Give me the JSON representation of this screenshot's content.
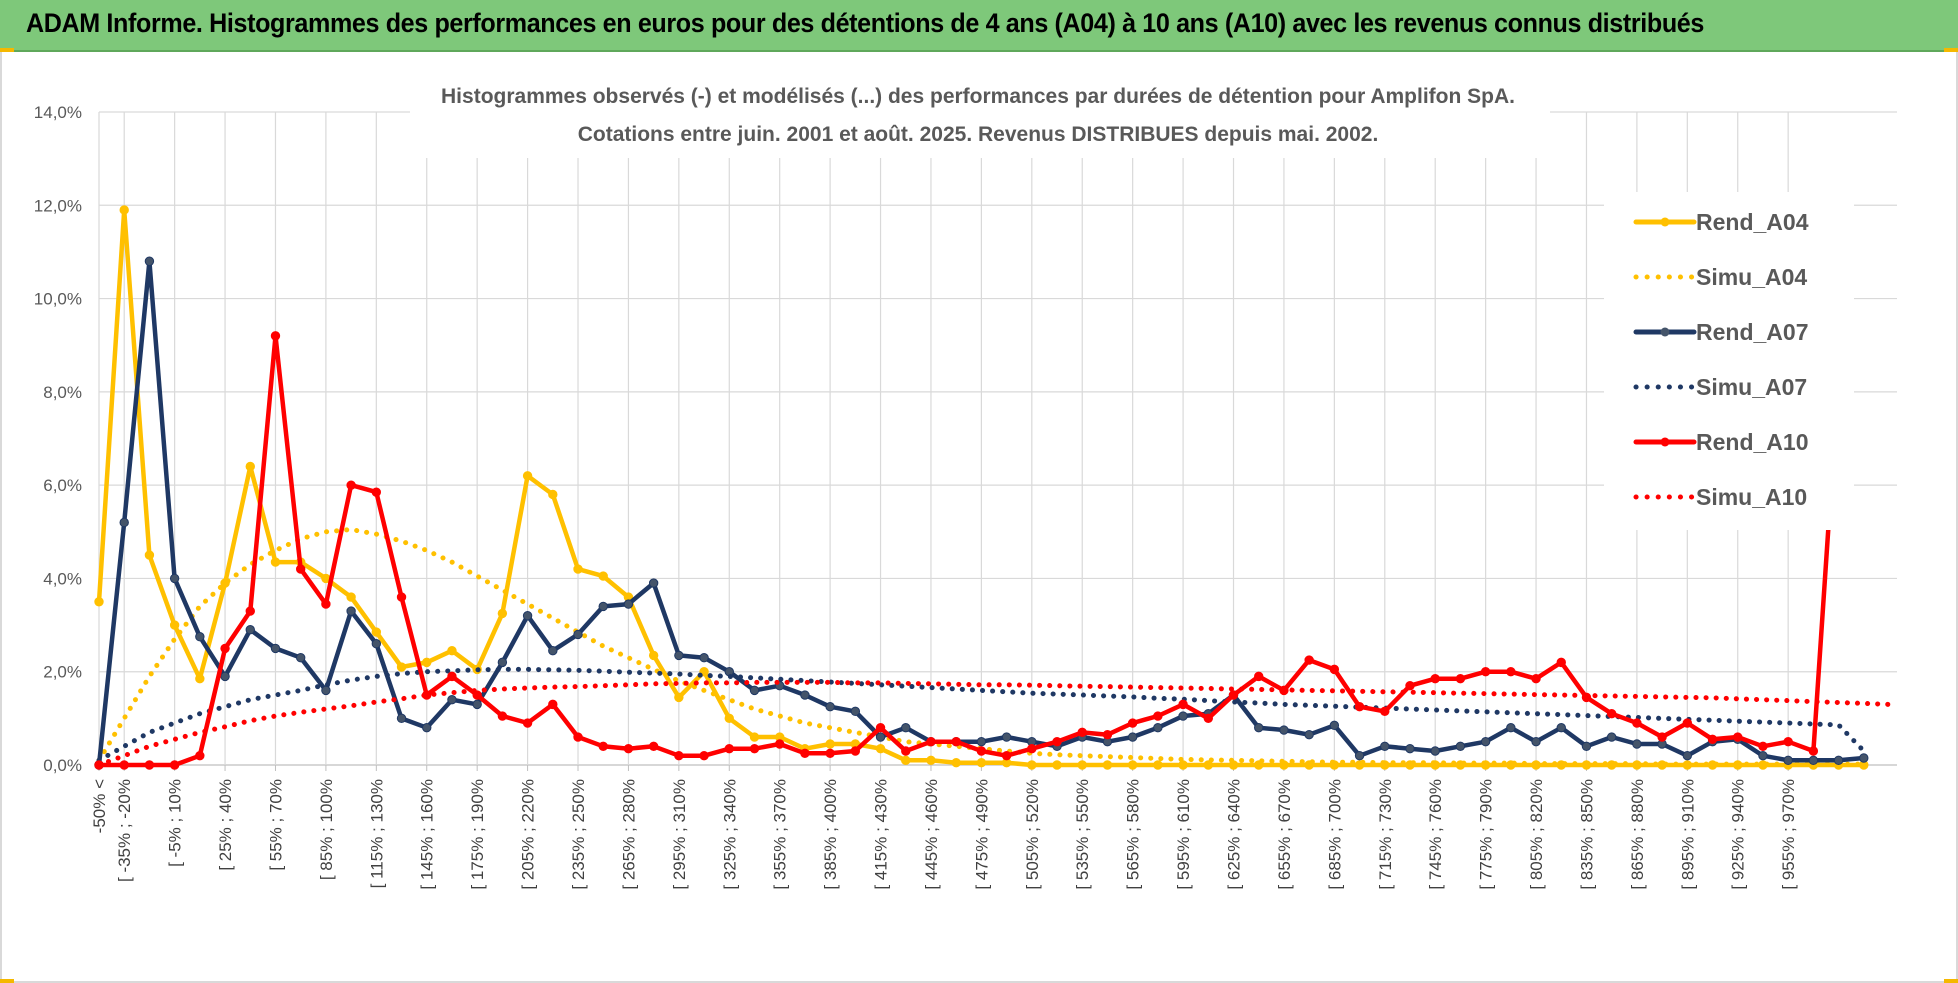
{
  "header": {
    "title": "ADAM Informe. Histogrammes des performances en euros pour des détentions de 4 ans (A04) à 10 ans (A10) avec les revenus connus distribués"
  },
  "colors": {
    "banner": "#7ec87a",
    "A04": "#ffc000",
    "A07": "#1f3864",
    "A10": "#ff0000",
    "grid": "#d9d9d9",
    "text": "#595959"
  },
  "chart_data": {
    "type": "line",
    "title": "Histogrammes observés (-) et modélisés (...) des performances par durées de détention pour Amplifon SpA.",
    "subtitle": "Cotations entre juin. 2001 et août. 2025. Revenus DISTRIBUES depuis mai. 2002.",
    "xlabel": "",
    "ylabel": "",
    "ylim": [
      0,
      14
    ],
    "yticks": [
      "0,0%",
      "2,0%",
      "4,0%",
      "6,0%",
      "8,0%",
      "10,0%",
      "12,0%",
      "14,0%"
    ],
    "grid": true,
    "legend_position": "right",
    "x_tick_labels": [
      "-50% <",
      "[ -35% ; -20%",
      "[ -5% ; 10%",
      "[ 25% ; 40%",
      "[ 55% ; 70%",
      "[ 85% ; 100%",
      "[ 115% ; 130%",
      "[ 145% ; 160%",
      "[ 175% ; 190%",
      "[ 205% ; 220%",
      "[ 235% ; 250%",
      "[ 265% ; 280%",
      "[ 295% ; 310%",
      "[ 325% ; 340%",
      "[ 355% ; 370%",
      "[ 385% ; 400%",
      "[ 415% ; 430%",
      "[ 445% ; 460%",
      "[ 475% ; 490%",
      "[ 505% ; 520%",
      "[ 535% ; 550%",
      "[ 565% ; 580%",
      "[ 595% ; 610%",
      "[ 625% ; 640%",
      "[ 655% ; 670%",
      "[ 685% ; 700%",
      "[ 715% ; 730%",
      "[ 745% ; 760%",
      "[ 775% ; 790%",
      "[ 805% ; 820%",
      "[ 835% ; 850%",
      "[ 865% ; 880%",
      "[ 895% ; 910%",
      "[ 925% ; 940%",
      "[ 955% ; 970%"
    ],
    "series": [
      {
        "name": "Rend_A04",
        "style": "solid",
        "color": "#ffc000",
        "values": [
          3.5,
          11.9,
          4.5,
          3.0,
          1.85,
          3.9,
          6.4,
          4.35,
          4.35,
          4.0,
          3.6,
          2.85,
          2.1,
          2.2,
          2.45,
          2.05,
          3.25,
          6.2,
          5.8,
          4.2,
          4.05,
          3.6,
          2.35,
          1.45,
          2.0,
          1.0,
          0.6,
          0.6,
          0.35,
          0.45,
          0.45,
          0.35,
          0.1,
          0.1,
          0.05,
          0.05,
          0.05,
          0.0,
          0.0,
          0.0,
          0.0,
          0.0,
          0.0,
          0.0,
          0.0,
          0.0,
          0.0,
          0.0,
          0.0,
          0.0,
          0.0,
          0.0,
          0.0,
          0.0,
          0.0,
          0.0,
          0.0,
          0.0,
          0.0,
          0.0,
          0.0,
          0.0,
          0.0,
          0.0,
          0.0,
          0.0,
          0.0,
          0.0,
          0.0,
          0.0,
          0.0
        ]
      },
      {
        "name": "Simu_A04",
        "style": "dotted",
        "color": "#ffc000",
        "values": [
          0.1,
          1.0,
          1.9,
          2.7,
          3.4,
          3.9,
          4.3,
          4.6,
          4.85,
          5.0,
          5.05,
          4.95,
          4.8,
          4.6,
          4.35,
          4.05,
          3.75,
          3.45,
          3.15,
          2.85,
          2.55,
          2.3,
          2.05,
          1.8,
          1.6,
          1.4,
          1.2,
          1.05,
          0.9,
          0.8,
          0.7,
          0.6,
          0.5,
          0.45,
          0.4,
          0.35,
          0.3,
          0.25,
          0.22,
          0.2,
          0.18,
          0.16,
          0.14,
          0.12,
          0.11,
          0.1,
          0.09,
          0.08,
          0.07,
          0.06,
          0.06,
          0.05,
          0.05,
          0.05,
          0.04,
          0.04,
          0.04,
          0.03,
          0.03,
          0.03,
          0.03,
          0.03,
          0.02,
          0.02,
          0.02,
          0.02,
          0.02,
          0.02,
          0.02,
          0.02,
          0.02
        ]
      },
      {
        "name": "Rend_A07",
        "style": "solid",
        "color": "#1f3864",
        "values": [
          0.0,
          5.2,
          10.8,
          4.0,
          2.75,
          1.9,
          2.9,
          2.5,
          2.3,
          1.6,
          3.3,
          2.6,
          1.0,
          0.8,
          1.4,
          1.3,
          2.2,
          3.2,
          2.45,
          2.8,
          3.4,
          3.45,
          3.9,
          2.35,
          2.3,
          2.0,
          1.6,
          1.7,
          1.5,
          1.25,
          1.15,
          0.6,
          0.8,
          0.5,
          0.5,
          0.5,
          0.6,
          0.5,
          0.4,
          0.6,
          0.5,
          0.6,
          0.8,
          1.05,
          1.1,
          1.5,
          0.8,
          0.75,
          0.65,
          0.85,
          0.2,
          0.4,
          0.35,
          0.3,
          0.4,
          0.5,
          0.8,
          0.5,
          0.8,
          0.4,
          0.6,
          0.45,
          0.45,
          0.2,
          0.5,
          0.55,
          0.2,
          0.1,
          0.1,
          0.1,
          0.15
        ]
      },
      {
        "name": "Simu_A07",
        "style": "dotted",
        "color": "#1f3864",
        "values": [
          0.1,
          0.4,
          0.7,
          0.9,
          1.1,
          1.25,
          1.4,
          1.5,
          1.6,
          1.72,
          1.82,
          1.9,
          1.96,
          2.0,
          2.02,
          2.04,
          2.05,
          2.05,
          2.04,
          2.03,
          2.01,
          1.99,
          1.97,
          1.95,
          1.92,
          1.9,
          1.87,
          1.84,
          1.81,
          1.78,
          1.75,
          1.72,
          1.69,
          1.66,
          1.63,
          1.6,
          1.57,
          1.54,
          1.52,
          1.5,
          1.48,
          1.46,
          1.43,
          1.41,
          1.38,
          1.35,
          1.33,
          1.3,
          1.28,
          1.26,
          1.24,
          1.22,
          1.2,
          1.18,
          1.16,
          1.14,
          1.12,
          1.1,
          1.08,
          1.06,
          1.04,
          1.02,
          1.0,
          0.98,
          0.96,
          0.94,
          0.92,
          0.9,
          0.88,
          0.86,
          0.3
        ]
      },
      {
        "name": "Rend_A10",
        "style": "solid",
        "color": "#ff0000",
        "values": [
          0.0,
          0.0,
          0.0,
          0.0,
          0.2,
          2.5,
          3.3,
          9.2,
          4.2,
          3.45,
          6.0,
          5.85,
          3.6,
          1.5,
          1.9,
          1.5,
          1.05,
          0.9,
          1.3,
          0.6,
          0.4,
          0.35,
          0.4,
          0.2,
          0.2,
          0.35,
          0.35,
          0.45,
          0.25,
          0.25,
          0.3,
          0.8,
          0.3,
          0.5,
          0.5,
          0.3,
          0.2,
          0.35,
          0.5,
          0.7,
          0.65,
          0.9,
          1.05,
          1.3,
          1.0,
          1.5,
          1.9,
          1.6,
          2.25,
          2.05,
          1.25,
          1.15,
          1.7,
          1.85,
          1.85,
          2.0,
          2.0,
          1.85,
          2.2,
          1.45,
          1.1,
          0.9,
          0.6,
          0.9,
          0.55,
          0.6,
          0.4,
          0.5,
          0.3,
          8.35
        ]
      },
      {
        "name": "Simu_A10",
        "style": "dotted",
        "color": "#ff0000",
        "values": [
          0.0,
          0.2,
          0.4,
          0.55,
          0.7,
          0.82,
          0.95,
          1.05,
          1.13,
          1.2,
          1.27,
          1.35,
          1.42,
          1.5,
          1.55,
          1.6,
          1.63,
          1.65,
          1.67,
          1.68,
          1.7,
          1.72,
          1.74,
          1.75,
          1.76,
          1.76,
          1.77,
          1.77,
          1.77,
          1.77,
          1.76,
          1.76,
          1.75,
          1.74,
          1.73,
          1.72,
          1.72,
          1.71,
          1.7,
          1.69,
          1.68,
          1.67,
          1.66,
          1.65,
          1.64,
          1.63,
          1.62,
          1.61,
          1.6,
          1.59,
          1.58,
          1.57,
          1.56,
          1.55,
          1.54,
          1.53,
          1.52,
          1.51,
          1.5,
          1.49,
          1.48,
          1.47,
          1.46,
          1.45,
          1.44,
          1.42,
          1.4,
          1.38,
          1.36,
          1.34,
          1.32,
          1.3
        ]
      }
    ]
  }
}
